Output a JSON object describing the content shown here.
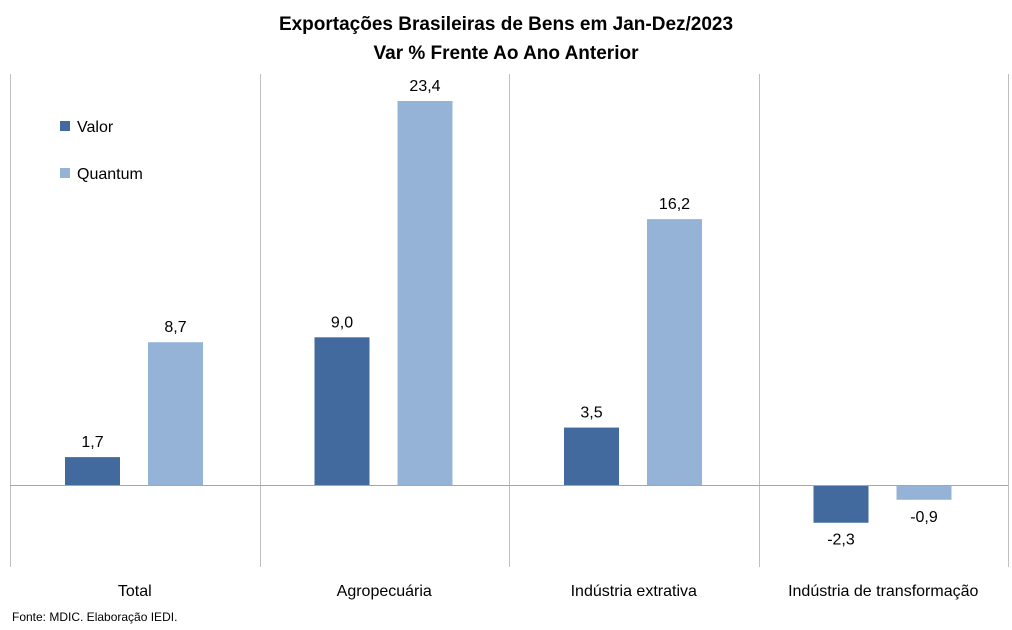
{
  "chart_data": {
    "type": "bar",
    "title": "Exportações Brasileiras de Bens em Jan-Dez/2023",
    "subtitle": "Var % Frente Ao Ano Anterior",
    "categories": [
      "Total",
      "Agropecuária",
      "Indústria extrativa",
      "Indústria de transformação"
    ],
    "series": [
      {
        "name": "Valor",
        "color": "#426A9E",
        "values": [
          1.7,
          9.0,
          3.5,
          -2.3
        ],
        "labels": [
          "1,7",
          "9,0",
          "3,5",
          "-2,3"
        ]
      },
      {
        "name": "Quantum",
        "color": "#95B3D7",
        "values": [
          8.7,
          23.4,
          16.2,
          -0.9
        ],
        "labels": [
          "8,7",
          "23,4",
          "16,2",
          "-0,9"
        ]
      }
    ],
    "ylim": [
      -5,
      25
    ],
    "grid": false,
    "legend_position": "top-left"
  },
  "source": "Fonte: MDIC. Elaboração IEDI.",
  "colors": {
    "divider": "#BFBFBF",
    "baseline": "#A6A6A6"
  }
}
